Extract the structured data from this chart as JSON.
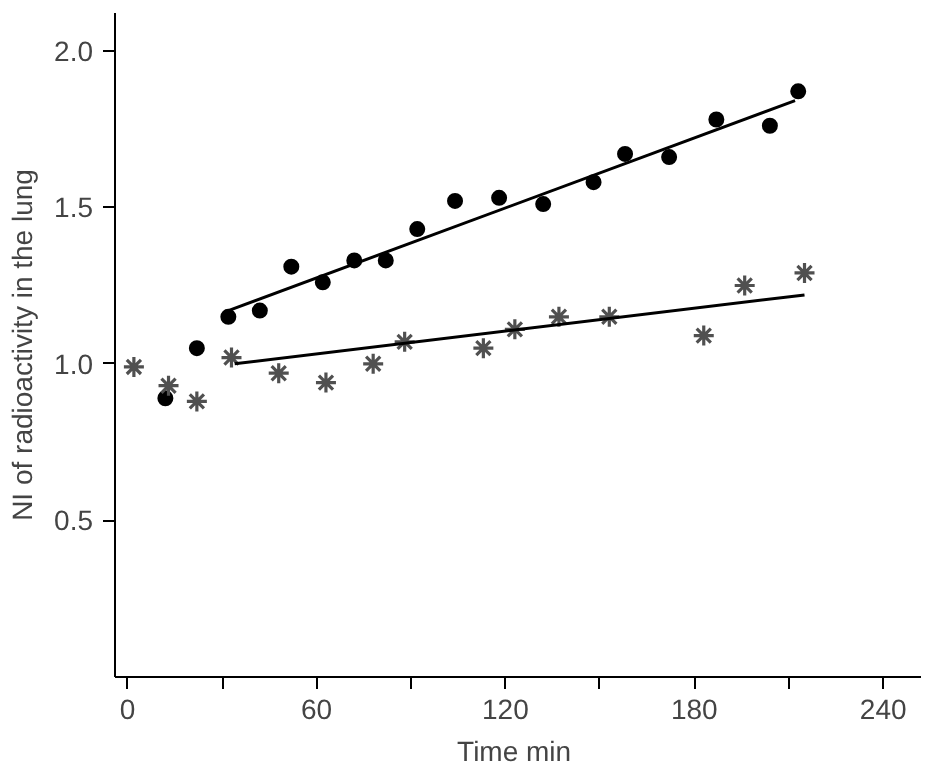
{
  "chart_data": {
    "type": "scatter",
    "xlabel": "Time  min",
    "ylabel": "NI of radioactivity in the lung",
    "xlim": [
      -4,
      252
    ],
    "ylim": [
      0,
      2.12
    ],
    "xticks": [
      0,
      {
        "value": 30,
        "label": null
      },
      60,
      {
        "value": 90,
        "label": null
      },
      120,
      {
        "value": 150,
        "label": null
      },
      180,
      {
        "value": 210,
        "label": null
      },
      240
    ],
    "yticks": [
      0.5,
      "1.0",
      1.5,
      "2.0"
    ],
    "grid": false,
    "series": [
      {
        "marker": "circle",
        "color": "#000000",
        "x": [
          12,
          22,
          32,
          42,
          52,
          62,
          72,
          82,
          92,
          104,
          118,
          132,
          148,
          158,
          172,
          187,
          204,
          213
        ],
        "values": [
          0.89,
          1.05,
          1.15,
          1.17,
          1.31,
          1.26,
          1.33,
          1.33,
          1.43,
          1.52,
          1.53,
          1.51,
          1.58,
          1.67,
          1.66,
          1.78,
          1.76,
          1.87
        ]
      },
      {
        "marker": "cross",
        "color": "#505050",
        "x": [
          2,
          13,
          22,
          33,
          48,
          63,
          78,
          88,
          113,
          123,
          137,
          153,
          183,
          196,
          215
        ],
        "values": [
          0.99,
          0.93,
          0.88,
          1.02,
          0.97,
          0.94,
          1.0,
          1.07,
          1.05,
          1.11,
          1.15,
          1.15,
          1.09,
          1.25,
          1.29
        ]
      },
      {
        "type": "line",
        "color": "#000000",
        "line_style": "solid",
        "x": [
          32,
          212
        ],
        "values": [
          1.17,
          1.84
        ]
      },
      {
        "type": "line",
        "color": "#000000",
        "line_style": "solid",
        "x": [
          34,
          215
        ],
        "values": [
          1.0,
          1.22
        ]
      }
    ]
  }
}
